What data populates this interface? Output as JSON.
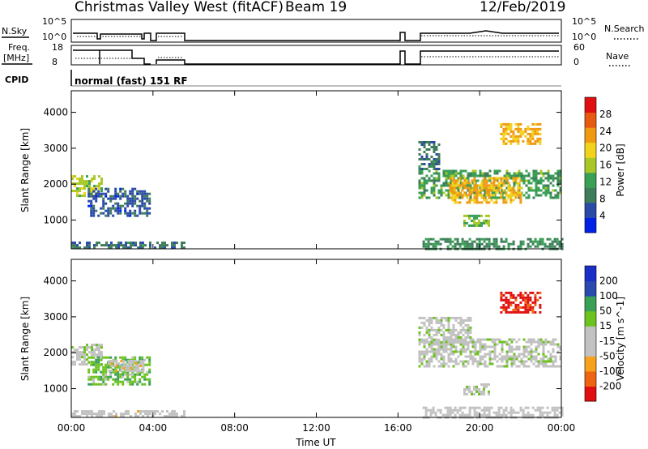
{
  "header": {
    "station": "Christmas Valley West (fitACF)",
    "beam": "Beam 19",
    "date": "12/Feb/2019"
  },
  "params": {
    "nsky_label": "N.Sky",
    "nsky_ticks": [
      "10^5",
      "10^0"
    ],
    "nsearch_label": "N.Search",
    "nsearch_ticks": [
      "10^5",
      "10^0"
    ],
    "freq_label_1": "Freq.",
    "freq_label_2": "[MHz]",
    "freq_ticks": [
      "18",
      "8"
    ],
    "nave_label": "Nave",
    "nave_ticks": [
      "60",
      "0"
    ],
    "cpid_label": "CPID",
    "cpid_text": "normal (fast) 151 RF"
  },
  "colors": {
    "power": [
      "#0022e6",
      "#2a4aa8",
      "#3f7c5c",
      "#3aa055",
      "#a8c828",
      "#f2d21a",
      "#f09a12",
      "#e85a10",
      "#e01010"
    ],
    "velocity": [
      "#e01010",
      "#ef6412",
      "#f6a21a",
      "#c2c2c2",
      "#c2c2c2",
      "#6cc21e",
      "#3aa055",
      "#2a4ab0",
      "#1a2ec8"
    ]
  },
  "chart_data": [
    {
      "type": "heatmap",
      "panel": "power",
      "ylabel": "Slant Range [km]",
      "yticks": [
        "4000",
        "3000",
        "2000",
        "1000"
      ],
      "ylim": [
        200,
        4600
      ],
      "xlim": [
        0,
        24
      ],
      "xticks": [
        "00:00",
        "04:00",
        "08:00",
        "12:00",
        "16:00",
        "20:00",
        "00:00"
      ],
      "colorbar_label": "Power [dB]",
      "colorbar_ticks": [
        "28",
        "24",
        "20",
        "16",
        "12",
        "8",
        "4"
      ],
      "clim": [
        0,
        32
      ],
      "regions": [
        {
          "t": [
            0.0,
            1.5
          ],
          "r": [
            1650,
            2250
          ],
          "value": 16
        },
        {
          "t": [
            0.8,
            3.8
          ],
          "r": [
            1150,
            1900
          ],
          "value": 6
        },
        {
          "t": [
            0.0,
            5.5
          ],
          "r": [
            220,
            400
          ],
          "value": 8
        },
        {
          "t": [
            17.0,
            24.0
          ],
          "r": [
            1600,
            2400
          ],
          "value": 12
        },
        {
          "t": [
            17.2,
            24.0
          ],
          "r": [
            220,
            500
          ],
          "value": 10
        },
        {
          "t": [
            18.5,
            22.0
          ],
          "r": [
            1500,
            2200
          ],
          "value": 22
        },
        {
          "t": [
            19.2,
            20.5
          ],
          "r": [
            850,
            1150
          ],
          "value": 14
        },
        {
          "t": [
            21.0,
            23.0
          ],
          "r": [
            3150,
            3700
          ],
          "value": 22
        },
        {
          "t": [
            17.0,
            18.0
          ],
          "r": [
            2400,
            3200
          ],
          "value": 8
        }
      ]
    },
    {
      "type": "heatmap",
      "panel": "velocity",
      "ylabel": "Slant Range [km]",
      "yticks": [
        "4000",
        "3000",
        "2000",
        "1000"
      ],
      "ylim": [
        200,
        4600
      ],
      "xlim": [
        0,
        24
      ],
      "xticks": [
        "00:00",
        "04:00",
        "08:00",
        "12:00",
        "16:00",
        "20:00",
        "00:00"
      ],
      "xlabel": "Time UT",
      "colorbar_label": "Velocity [m s^-1]",
      "colorbar_ticks": [
        "200",
        "100",
        "50",
        "15",
        "-15",
        "-50",
        "-100",
        "-200"
      ],
      "clim": [
        -250,
        250
      ],
      "regions": [
        {
          "t": [
            0.0,
            1.5
          ],
          "r": [
            1650,
            2250
          ],
          "value": 0
        },
        {
          "t": [
            0.8,
            3.8
          ],
          "r": [
            1150,
            1900
          ],
          "value": 60
        },
        {
          "t": [
            1.8,
            3.5
          ],
          "r": [
            1500,
            1800
          ],
          "value": -60
        },
        {
          "t": [
            0.0,
            5.5
          ],
          "r": [
            220,
            400
          ],
          "value": -40
        },
        {
          "t": [
            17.0,
            24.0
          ],
          "r": [
            1600,
            2400
          ],
          "value": 0
        },
        {
          "t": [
            17.0,
            19.5
          ],
          "r": [
            2300,
            3000
          ],
          "value": 0
        },
        {
          "t": [
            19.2,
            20.5
          ],
          "r": [
            850,
            1150
          ],
          "value": 0
        },
        {
          "t": [
            17.2,
            24.0
          ],
          "r": [
            220,
            500
          ],
          "value": -30
        },
        {
          "t": [
            21.0,
            23.0
          ],
          "r": [
            3150,
            3700
          ],
          "value": -220
        }
      ]
    }
  ]
}
